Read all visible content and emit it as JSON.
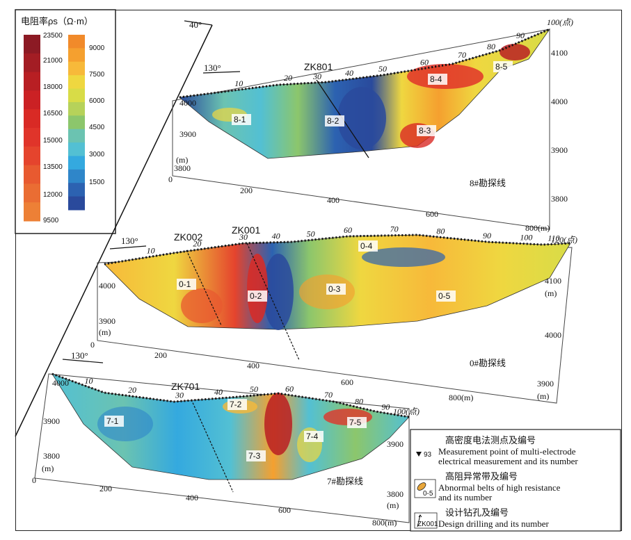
{
  "color_scale": {
    "title": "电阻率ρs（Ω·m）",
    "left_labels": [
      "23500",
      "21000",
      "18000",
      "16500",
      "15000",
      "13500",
      "12000",
      "9500"
    ],
    "right_labels": [
      "9000",
      "7500",
      "6000",
      "4500",
      "3000",
      "1500"
    ],
    "left_colors": [
      "#8c1a24",
      "#a31d24",
      "#b81f23",
      "#cb2124",
      "#d92a25",
      "#e0342a",
      "#e5442d",
      "#e85a30",
      "#ea6d33",
      "#ed8036"
    ],
    "right_colors": [
      "#f18a2a",
      "#f5a02f",
      "#f7b93a",
      "#efd740",
      "#d8dc47",
      "#b6d25a",
      "#8cc66c",
      "#6bc3b1",
      "#53c0d3",
      "#34a9df",
      "#2f86c9",
      "#2c62b1",
      "#2a4a9c"
    ]
  },
  "sections": {
    "line8": {
      "title": "8#勘探线",
      "drill": "ZK801",
      "angle": "130°",
      "end_label": "100(点)",
      "points": [
        "10",
        "20",
        "30",
        "40",
        "50",
        "60",
        "70",
        "80",
        "90"
      ],
      "anomalies": [
        "8-1",
        "8-2",
        "8-3",
        "8-4",
        "8-5"
      ],
      "x_ticks": [
        "0",
        "200",
        "400",
        "600",
        "800(m)"
      ],
      "y_ticks_left": [
        "4000",
        "3900",
        "(m)",
        "3800"
      ],
      "y_ticks_right": [
        "4100",
        "4000",
        "3900",
        "3800"
      ]
    },
    "line0": {
      "title": "0#勘探线",
      "drills": [
        "ZK002",
        "ZK001"
      ],
      "angle": "130°",
      "end_label": "120(点)",
      "points": [
        "10",
        "20",
        "30",
        "40",
        "50",
        "60",
        "70",
        "80",
        "90",
        "100",
        "110"
      ],
      "anomalies": [
        "0-1",
        "0-2",
        "0-3",
        "0-4",
        "0-5"
      ],
      "x_ticks": [
        "0",
        "200",
        "400",
        "600",
        "800(m)"
      ],
      "y_ticks_left": [
        "4000",
        "3900",
        "(m)"
      ],
      "y_ticks_right": [
        "4100",
        "(m)",
        "4000",
        "3900",
        "(m)"
      ]
    },
    "line7": {
      "title": "7#勘探线",
      "drill": "ZK701",
      "angle": "130°",
      "end_label": "100(点)",
      "points": [
        "10",
        "20",
        "30",
        "40",
        "50",
        "60",
        "70",
        "80",
        "90"
      ],
      "anomalies": [
        "7-1",
        "7-2",
        "7-3",
        "7-4",
        "7-5"
      ],
      "x_ticks": [
        "0",
        "200",
        "400",
        "600",
        "800(m)"
      ],
      "y_ticks_left": [
        "4000",
        "3900",
        "3800",
        "(m)"
      ],
      "y_ticks_right": [
        "3900",
        "3800",
        "(m)"
      ]
    }
  },
  "north_angle": "40°",
  "legend": {
    "item1_cn": "高密度电法测点及编号",
    "item1_en1": "Measurement point of multi-electrode",
    "item1_en2": "electrical measurement and its number",
    "item1_sym": "93",
    "item2_cn": "高阻异常带及编号",
    "item2_en1": "Abnormal belts of high resistance",
    "item2_en2": "and its number",
    "item2_sym": "0-5",
    "item3_cn": "设计钻孔及编号",
    "item3_en": "Design drilling and its number",
    "item3_sym": "ZK001"
  }
}
